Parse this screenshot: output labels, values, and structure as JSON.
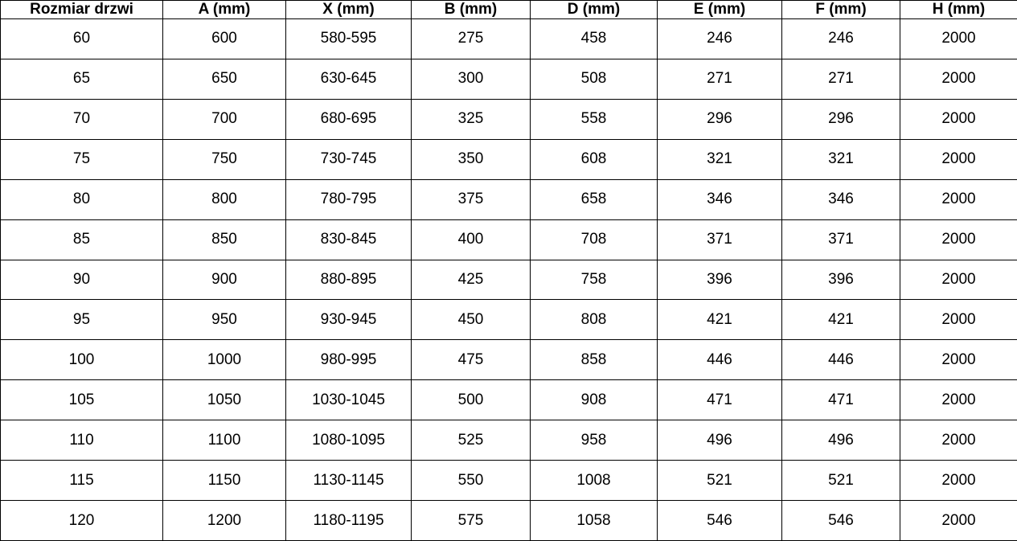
{
  "table": {
    "name": "door-dimensions-table",
    "columns": [
      "Rozmiar drzwi",
      "A (mm)",
      "X (mm)",
      "B (mm)",
      "D (mm)",
      "E (mm)",
      "F (mm)",
      "H (mm)"
    ],
    "rows": [
      [
        "60",
        "600",
        "580-595",
        "275",
        "458",
        "246",
        "246",
        "2000"
      ],
      [
        "65",
        "650",
        "630-645",
        "300",
        "508",
        "271",
        "271",
        "2000"
      ],
      [
        "70",
        "700",
        "680-695",
        "325",
        "558",
        "296",
        "296",
        "2000"
      ],
      [
        "75",
        "750",
        "730-745",
        "350",
        "608",
        "321",
        "321",
        "2000"
      ],
      [
        "80",
        "800",
        "780-795",
        "375",
        "658",
        "346",
        "346",
        "2000"
      ],
      [
        "85",
        "850",
        "830-845",
        "400",
        "708",
        "371",
        "371",
        "2000"
      ],
      [
        "90",
        "900",
        "880-895",
        "425",
        "758",
        "396",
        "396",
        "2000"
      ],
      [
        "95",
        "950",
        "930-945",
        "450",
        "808",
        "421",
        "421",
        "2000"
      ],
      [
        "100",
        "1000",
        "980-995",
        "475",
        "858",
        "446",
        "446",
        "2000"
      ],
      [
        "105",
        "1050",
        "1030-1045",
        "500",
        "908",
        "471",
        "471",
        "2000"
      ],
      [
        "110",
        "1100",
        "1080-1095",
        "525",
        "958",
        "496",
        "496",
        "2000"
      ],
      [
        "115",
        "1150",
        "1130-1145",
        "550",
        "1008",
        "521",
        "521",
        "2000"
      ],
      [
        "120",
        "1200",
        "1180-1195",
        "575",
        "1058",
        "546",
        "546",
        "2000"
      ]
    ],
    "colors": {
      "border": "#000000",
      "text": "#000000",
      "background": "#ffffff"
    }
  }
}
